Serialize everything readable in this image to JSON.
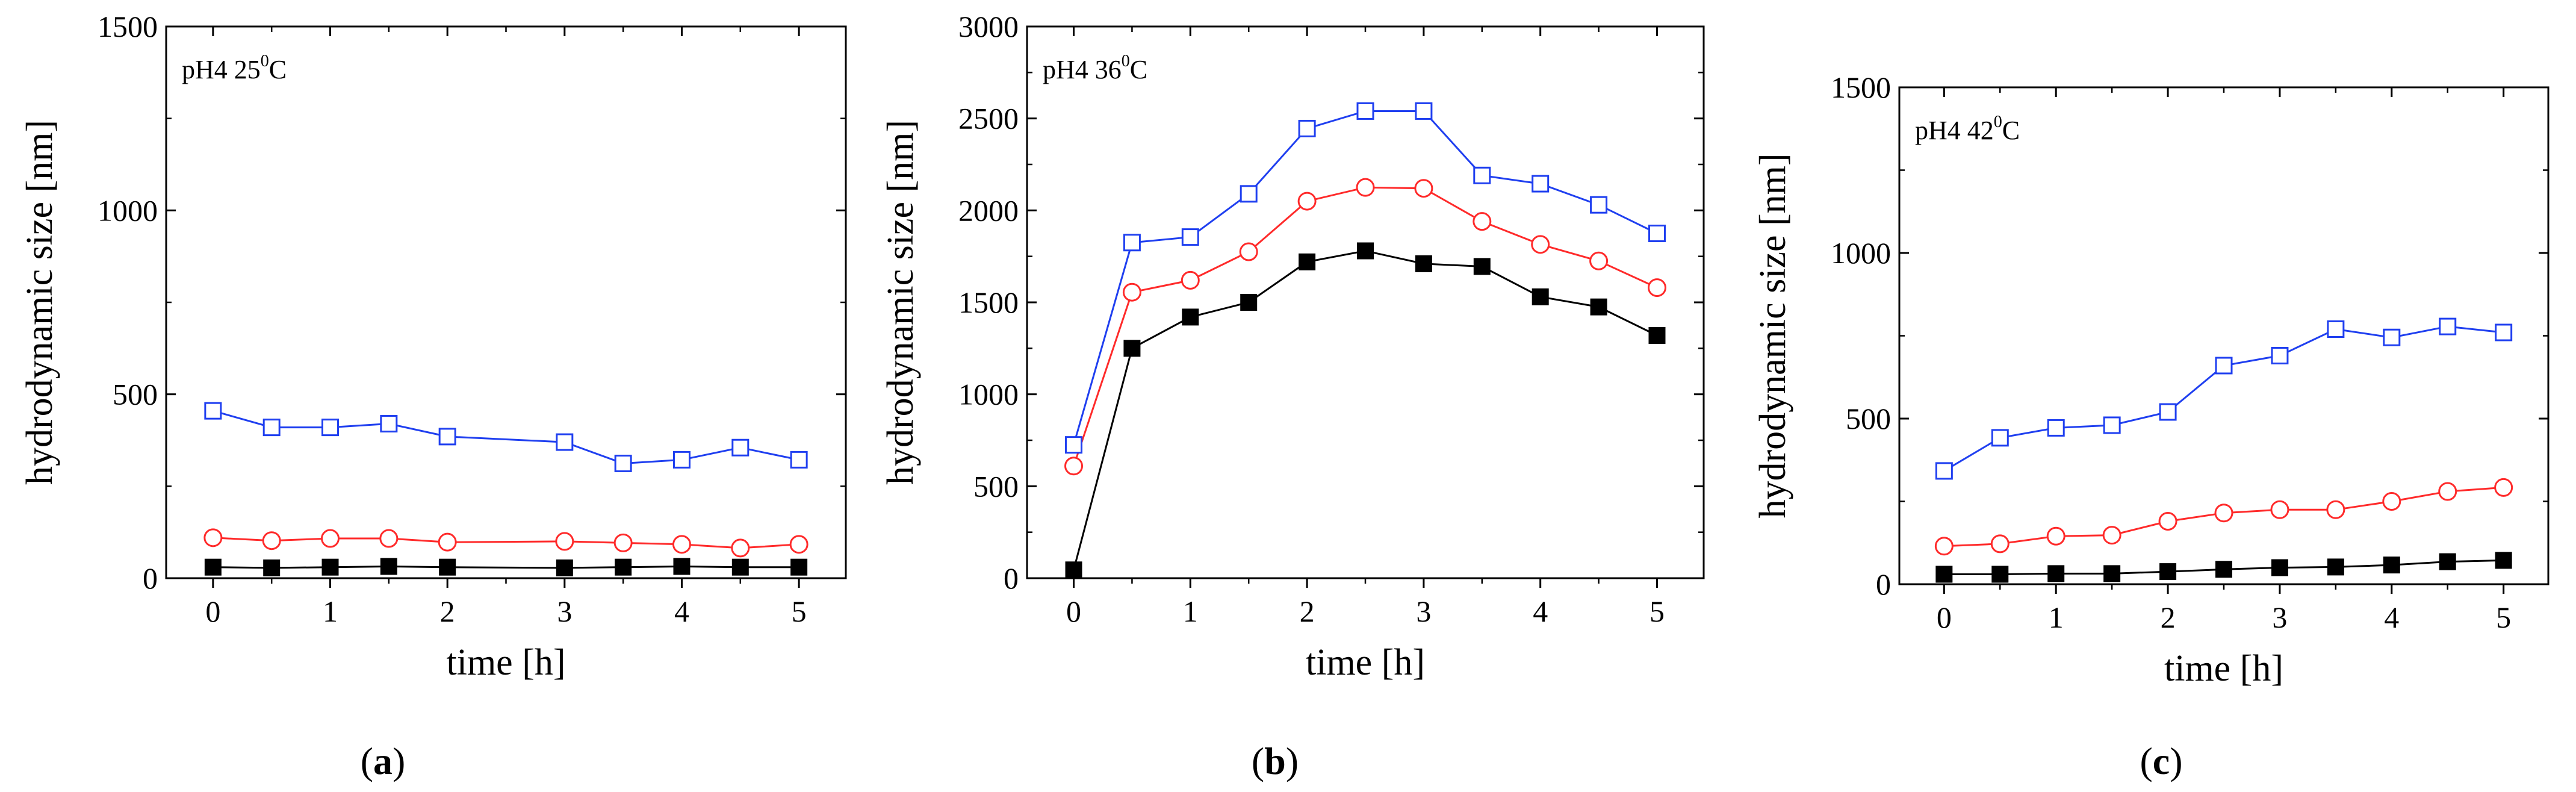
{
  "chart_data": [
    {
      "type": "line",
      "panel_label": "a",
      "annotation": {
        "text": "pH4  25",
        "superscript": "0",
        "unit": "C"
      },
      "xlabel": "time [h]",
      "ylabel": "hydrodynamic size [nm]",
      "xlim": [
        -0.4,
        5.4
      ],
      "ylim": [
        0,
        1500
      ],
      "xticks": [
        0,
        1,
        2,
        3,
        4,
        5
      ],
      "yticks": [
        0,
        500,
        1000,
        1500
      ],
      "x": [
        0,
        0.5,
        1,
        1.5,
        2,
        3,
        3.5,
        4,
        4.5,
        5
      ],
      "series": [
        {
          "name": "black filled squares",
          "color": "#000000",
          "marker": "filled-square",
          "values": [
            30,
            28,
            30,
            32,
            30,
            28,
            30,
            32,
            30,
            30
          ]
        },
        {
          "name": "red open circles",
          "color": "#ff2a2a",
          "marker": "open-circle",
          "values": [
            110,
            102,
            108,
            108,
            98,
            100,
            96,
            92,
            82,
            92
          ]
        },
        {
          "name": "blue open squares",
          "color": "#1f3ff0",
          "marker": "open-square",
          "values": [
            455,
            410,
            410,
            420,
            385,
            370,
            312,
            322,
            355,
            322
          ]
        }
      ]
    },
    {
      "type": "line",
      "panel_label": "b",
      "annotation": {
        "text": "pH4  36",
        "superscript": "0",
        "unit": "C"
      },
      "xlabel": "time [h]",
      "ylabel": "hydrodynamic size [nm]",
      "xlim": [
        -0.4,
        5.4
      ],
      "ylim": [
        0,
        3000
      ],
      "xticks": [
        0,
        1,
        2,
        3,
        4,
        5
      ],
      "yticks": [
        0,
        500,
        1000,
        1500,
        2000,
        2500,
        3000
      ],
      "x": [
        0,
        0.5,
        1,
        1.5,
        2,
        2.5,
        3,
        3.5,
        4,
        4.5,
        5
      ],
      "series": [
        {
          "name": "black filled squares",
          "color": "#000000",
          "marker": "filled-square",
          "values": [
            45,
            1250,
            1420,
            1500,
            1720,
            1780,
            1710,
            1695,
            1530,
            1475,
            1320
          ]
        },
        {
          "name": "red open circles",
          "color": "#ff2a2a",
          "marker": "open-circle",
          "values": [
            610,
            1555,
            1620,
            1775,
            2050,
            2125,
            2120,
            1940,
            1815,
            1725,
            1580
          ]
        },
        {
          "name": "blue open squares",
          "color": "#1f3ff0",
          "marker": "open-square",
          "values": [
            725,
            1825,
            1855,
            2090,
            2445,
            2540,
            2540,
            2190,
            2145,
            2030,
            1875
          ]
        }
      ]
    },
    {
      "type": "line",
      "panel_label": "c",
      "annotation": {
        "text": "pH4  42",
        "superscript": "0",
        "unit": "C"
      },
      "xlabel": "time [h]",
      "ylabel": "hydrodynamic size [nm]",
      "xlim": [
        -0.4,
        5.4
      ],
      "ylim": [
        0,
        1500
      ],
      "xticks": [
        0,
        1,
        2,
        3,
        4,
        5
      ],
      "yticks": [
        0,
        500,
        1000,
        1500
      ],
      "x": [
        0,
        0.5,
        1,
        1.5,
        2,
        2.5,
        3,
        3.5,
        4,
        4.5,
        5
      ],
      "series": [
        {
          "name": "black filled squares",
          "color": "#000000",
          "marker": "filled-square",
          "values": [
            30,
            30,
            32,
            32,
            38,
            45,
            50,
            52,
            58,
            68,
            72
          ]
        },
        {
          "name": "red open circles",
          "color": "#ff2a2a",
          "marker": "open-circle",
          "values": [
            115,
            122,
            145,
            148,
            190,
            215,
            225,
            225,
            250,
            280,
            292
          ]
        },
        {
          "name": "blue open squares",
          "color": "#1f3ff0",
          "marker": "open-square",
          "values": [
            342,
            442,
            472,
            480,
            520,
            660,
            690,
            770,
            745,
            778,
            760
          ]
        }
      ]
    }
  ]
}
